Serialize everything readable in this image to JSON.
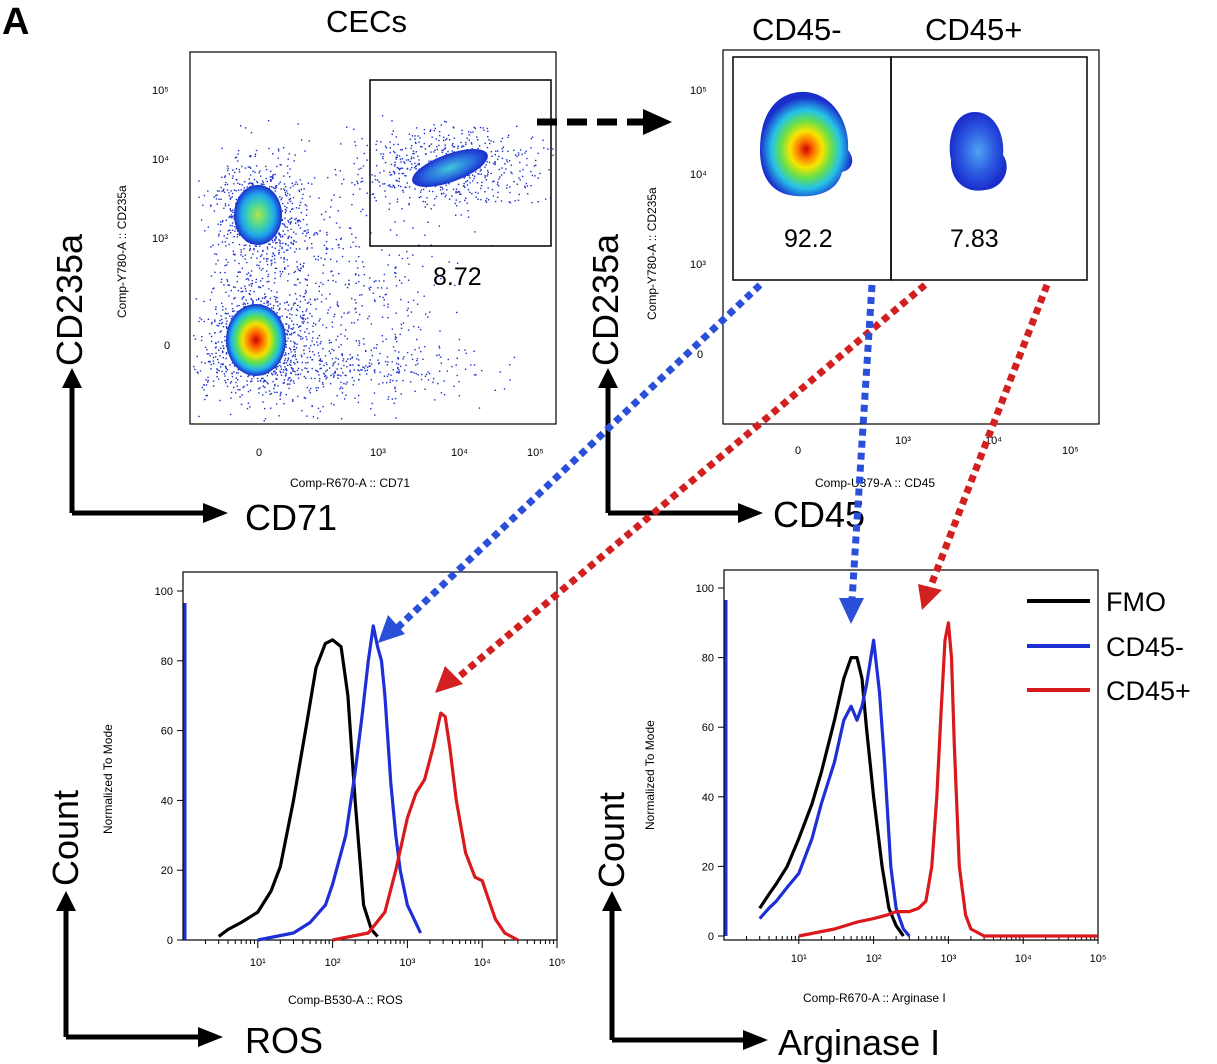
{
  "panel_label": "A",
  "colors": {
    "fmo": "#000000",
    "cd45neg": "#1f2fd6",
    "cd45pos": "#d9191c",
    "arrow_blue": "#2a4fd8",
    "arrow_red": "#d21f1f"
  },
  "chart_data": [
    {
      "type": "scatter",
      "title": "CECs",
      "xlabel": "Comp-R670-A :: CD71",
      "ylabel": "Comp-Y780-A :: CD235a",
      "big_xlabel": "CD71",
      "big_ylabel": "CD235a",
      "x_ticks": [
        "0",
        "10³",
        "10⁴",
        "10⁵"
      ],
      "y_ticks": [
        "10⁵",
        "10⁴",
        "10³",
        "0"
      ],
      "gate_value": "8.72",
      "populations": [
        {
          "x": 1.0,
          "y": 3.1,
          "note": "CD71- CD235a+ cluster"
        },
        {
          "x": 0.0,
          "y": 0.0,
          "note": "double-negative cluster"
        },
        {
          "x": 3.9,
          "y": 3.8,
          "note": "CD71+ CD235a+ gated"
        }
      ]
    },
    {
      "type": "scatter",
      "title_left": "CD45-",
      "title_right": "CD45+",
      "xlabel": "Comp-U379-A :: CD45",
      "ylabel": "Comp-Y780-A :: CD235a",
      "big_xlabel": "CD45",
      "big_ylabel": "CD235a",
      "x_ticks": [
        "0",
        "10³",
        "10⁴",
        "10⁵"
      ],
      "y_ticks": [
        "10⁵",
        "10⁴",
        "10³",
        "0"
      ],
      "gate_values": [
        "92.2",
        "7.83"
      ]
    },
    {
      "type": "line",
      "xlabel": "Comp-B530-A :: ROS",
      "ylabel": "Normalized To Mode",
      "big_xlabel": "ROS",
      "big_ylabel": "Count",
      "x_scale": "log",
      "xlim": [
        1,
        100000
      ],
      "ylim": [
        0,
        100
      ],
      "x_ticks": [
        "10¹",
        "10²",
        "10³",
        "10⁴",
        "10⁵"
      ],
      "y_ticks": [
        "0",
        "20",
        "40",
        "60",
        "80",
        "100"
      ],
      "series": [
        {
          "key": "fmo",
          "x": [
            3,
            4,
            6,
            10,
            15,
            20,
            30,
            45,
            60,
            80,
            100,
            130,
            160,
            200,
            260,
            330,
            400
          ],
          "y": [
            1,
            3,
            5,
            8,
            14,
            21,
            40,
            62,
            78,
            85,
            86,
            84,
            70,
            40,
            10,
            3,
            1
          ]
        },
        {
          "key": "cd45neg",
          "x": [
            10,
            30,
            50,
            80,
            100,
            150,
            200,
            250,
            300,
            350,
            400,
            450,
            500,
            600,
            700,
            800,
            1000,
            1500
          ],
          "y": [
            0,
            2,
            5,
            10,
            16,
            30,
            48,
            65,
            80,
            90,
            84,
            80,
            70,
            45,
            30,
            20,
            10,
            2
          ]
        },
        {
          "key": "cd45pos",
          "x": [
            100,
            300,
            500,
            700,
            1000,
            1300,
            1700,
            2200,
            2800,
            3200,
            3700,
            4500,
            6000,
            8000,
            10000,
            12000,
            15000,
            20000,
            30000
          ],
          "y": [
            0,
            2,
            8,
            20,
            35,
            42,
            46,
            55,
            65,
            64,
            55,
            40,
            25,
            18,
            17,
            12,
            6,
            2,
            0
          ]
        }
      ]
    },
    {
      "type": "line",
      "xlabel": "Comp-R670-A :: Arginase I",
      "ylabel": "Normalized To Mode",
      "big_xlabel": "Arginase I",
      "big_ylabel": "Count",
      "x_scale": "log",
      "xlim": [
        1,
        100000
      ],
      "ylim": [
        0,
        100
      ],
      "x_ticks": [
        "10¹",
        "10²",
        "10³",
        "10⁴",
        "10⁵"
      ],
      "y_ticks": [
        "0",
        "20",
        "40",
        "60",
        "80",
        "100"
      ],
      "legend": [
        "FMO",
        "CD45-",
        "CD45+"
      ],
      "series": [
        {
          "key": "fmo",
          "x": [
            3,
            4,
            5,
            7,
            10,
            15,
            20,
            30,
            40,
            50,
            60,
            70,
            80,
            100,
            130,
            160,
            200,
            250
          ],
          "y": [
            8,
            12,
            15,
            20,
            28,
            38,
            47,
            62,
            74,
            80,
            80,
            74,
            60,
            40,
            20,
            8,
            3,
            0
          ]
        },
        {
          "key": "cd45neg",
          "x": [
            3,
            4,
            5,
            7,
            10,
            15,
            20,
            30,
            40,
            50,
            60,
            70,
            80,
            100,
            120,
            140,
            170,
            200,
            250,
            300
          ],
          "y": [
            5,
            8,
            10,
            14,
            18,
            28,
            38,
            50,
            62,
            66,
            62,
            66,
            72,
            85,
            70,
            50,
            20,
            8,
            2,
            0
          ]
        },
        {
          "key": "cd45pos",
          "x": [
            10,
            30,
            60,
            100,
            150,
            200,
            300,
            400,
            500,
            600,
            700,
            800,
            900,
            1000,
            1100,
            1200,
            1400,
            1700,
            2000,
            3000,
            10000,
            100000
          ],
          "y": [
            0,
            2,
            4,
            5,
            6,
            7,
            7,
            8,
            10,
            20,
            40,
            65,
            85,
            90,
            80,
            55,
            20,
            6,
            2,
            0,
            0,
            0
          ]
        }
      ]
    }
  ]
}
